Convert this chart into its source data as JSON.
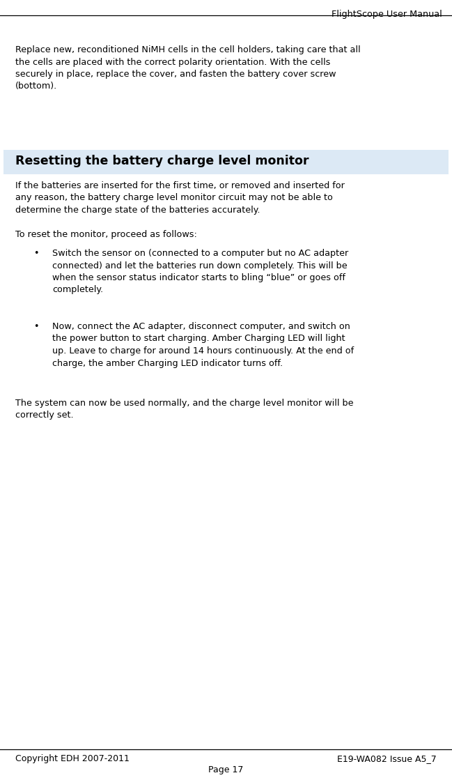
{
  "header_text": "FlightScope User Manual",
  "footer_left": "Copyright EDH 2007-2011",
  "footer_right": "E19-WA082 Issue A5_7",
  "footer_center": "Page 17",
  "bg_color": "#ffffff",
  "text_color": "#000000",
  "body_font_size": 9.2,
  "header_font_size": 9.2,
  "footer_font_size": 9.0,
  "section_heading": "Resetting the battery charge level monitor",
  "section_heading_font_size": 12.5,
  "section_heading_bg": "#dce9f5",
  "para1": "Replace new, reconditioned NiMH cells in the cell holders, taking care that all\nthe cells are placed with the correct polarity orientation. With the cells\nsecurely in place, replace the cover, and fasten the battery cover screw\n(bottom).",
  "para2": "If the batteries are inserted for the first time, or removed and inserted for\nany reason, the battery charge level monitor circuit may not be able to\ndetermine the charge state of the batteries accurately.",
  "para3": "To reset the monitor, proceed as follows:",
  "bullet1": "Switch the sensor on (connected to a computer but no AC adapter\nconnected) and let the batteries run down completely. This will be\nwhen the sensor status indicator starts to bling “blue” or goes off\ncompletely.",
  "bullet2": "Now, connect the AC adapter, disconnect computer, and switch on\nthe power button to start charging. Amber Charging LED will light\nup. Leave to charge for around 14 hours continuously. At the end of\ncharge, the amber Charging LED indicator turns off.",
  "para4": "The system can now be used normally, and the charge level monitor will be\ncorrectly set."
}
